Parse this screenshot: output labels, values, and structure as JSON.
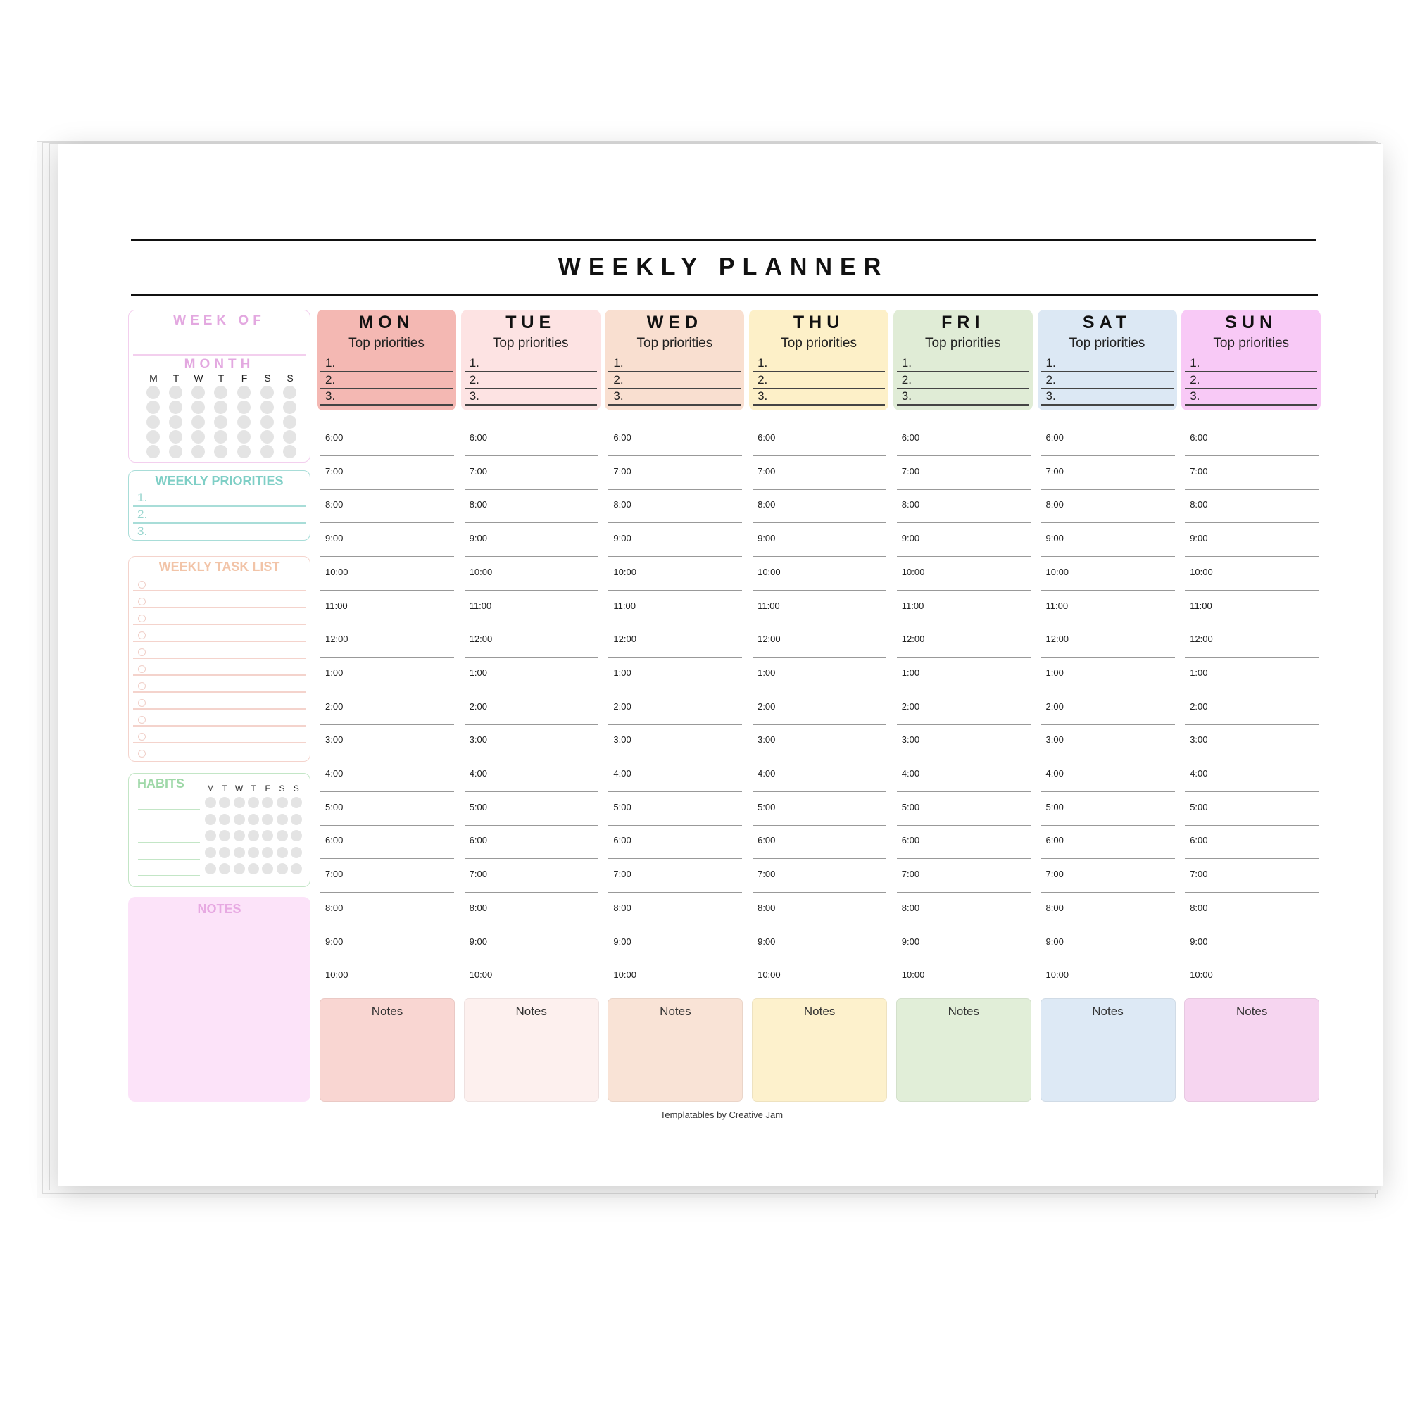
{
  "title": "WEEKLY PLANNER",
  "sidebar": {
    "week_of": "WEEK OF",
    "month": "MONTH",
    "month_days": [
      "M",
      "T",
      "W",
      "T",
      "F",
      "S",
      "S"
    ],
    "weekly_priorities": {
      "title": "WEEKLY PRIORITIES",
      "items": [
        "1.",
        "2.",
        "3."
      ]
    },
    "task_list": {
      "title": "WEEKLY TASK LIST",
      "count": 11
    },
    "habits": {
      "title": "HABITS",
      "days": [
        "M",
        "T",
        "W",
        "T",
        "F",
        "S",
        "S"
      ]
    },
    "notes": {
      "title": "NOTES"
    }
  },
  "days": [
    {
      "name": "MON",
      "color": "#f4b8b3",
      "notes_color": "#f9d6d2"
    },
    {
      "name": "TUE",
      "color": "#fde3e3",
      "notes_color": "#fdf0ee"
    },
    {
      "name": "WED",
      "color": "#f9dfd0",
      "notes_color": "#f9e3d6"
    },
    {
      "name": "THU",
      "color": "#fdf0c8",
      "notes_color": "#fdf1cc"
    },
    {
      "name": "FRI",
      "color": "#e0ecd6",
      "notes_color": "#e1eed8"
    },
    {
      "name": "SAT",
      "color": "#dce8f4",
      "notes_color": "#dde9f5"
    },
    {
      "name": "SUN",
      "color": "#f8c9f6",
      "notes_color": "#f6d5f0"
    }
  ],
  "day_labels": {
    "top_priorities": "Top priorities",
    "priority_numbers": [
      "1.",
      "2.",
      "3."
    ],
    "notes": "Notes"
  },
  "times": [
    "6:00",
    "7:00",
    "8:00",
    "9:00",
    "10:00",
    "11:00",
    "12:00",
    "1:00",
    "2:00",
    "3:00",
    "4:00",
    "5:00",
    "6:00",
    "7:00",
    "8:00",
    "9:00",
    "10:00"
  ],
  "footer": "Templatables by Creative Jam",
  "colors": {
    "week_of": "#e3a8e0",
    "priorities": "#7fcfc6",
    "tasks": "#f2c4a8",
    "habits": "#9fd8a8",
    "notes_bg": "#fce3f9",
    "notes_title": "#e7a9e2"
  }
}
